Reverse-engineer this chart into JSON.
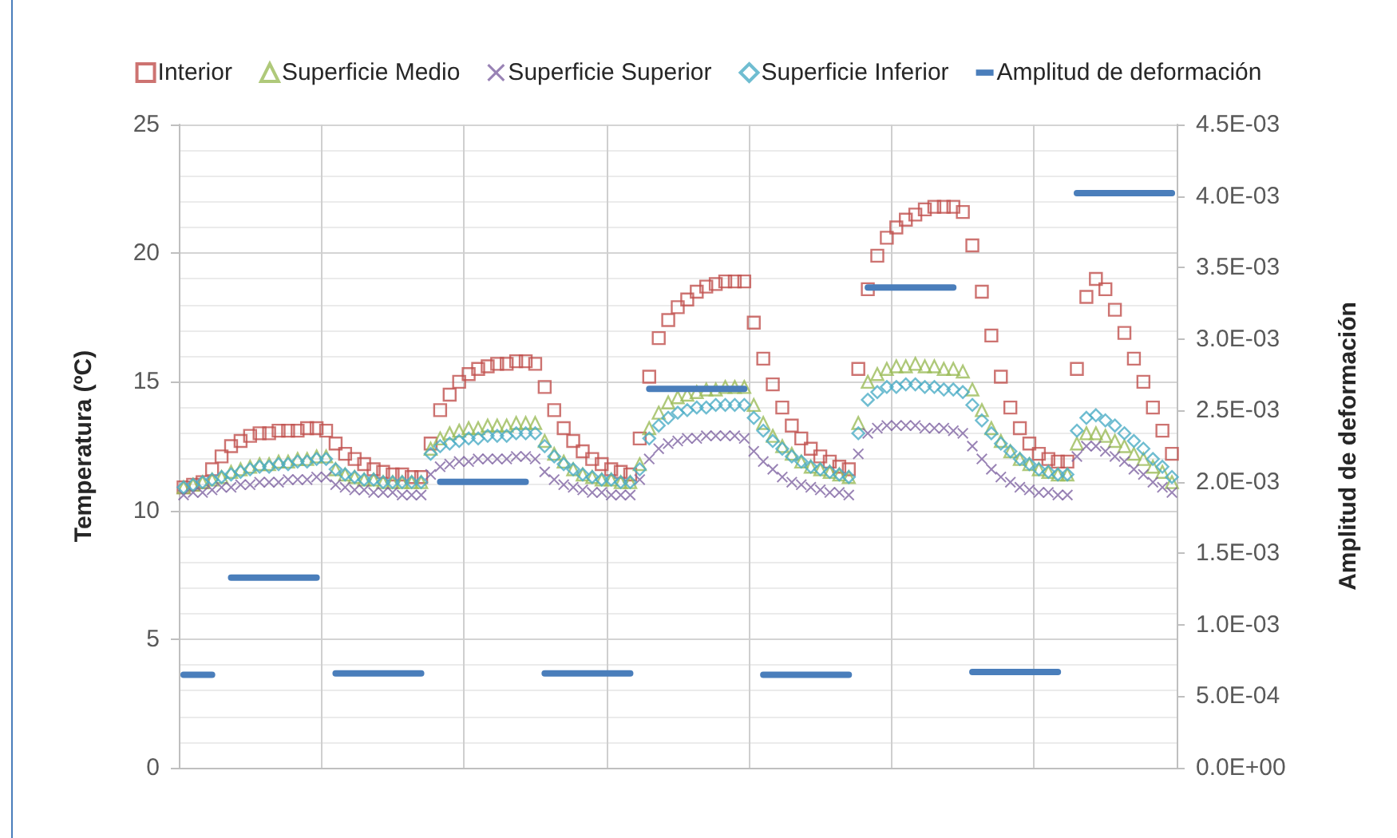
{
  "chart_data": {
    "type": "scatter",
    "categories": [
      null,
      null,
      null,
      null,
      null,
      null,
      null,
      null,
      null,
      null,
      null,
      null,
      null,
      null,
      null,
      null,
      null,
      null,
      null,
      null,
      null,
      null,
      null,
      null,
      null,
      null,
      null,
      null,
      null,
      null,
      null,
      null,
      null,
      null,
      null,
      null,
      null,
      null,
      null,
      null,
      null,
      null,
      null,
      null,
      null,
      null,
      null,
      null,
      null,
      null,
      null,
      null,
      null,
      null,
      null,
      null,
      null,
      null,
      null,
      null,
      null,
      null,
      null,
      null,
      null,
      null,
      null,
      null,
      null,
      null,
      null,
      null,
      null,
      null,
      null,
      null,
      null,
      null,
      null,
      null,
      null,
      null,
      null,
      null,
      null,
      null,
      null,
      null,
      null,
      null,
      null,
      null,
      null,
      null,
      null,
      null,
      null,
      null,
      null,
      null,
      null,
      null,
      null,
      null,
      null
    ],
    "ylabel": "Temperatura (ºC)",
    "y2label": "Amplitud de deformación",
    "ylim": [
      0,
      25
    ],
    "yticks": [
      0,
      5,
      10,
      15,
      20,
      25
    ],
    "y2lim": [
      0,
      0.0045
    ],
    "y2ticks": [
      {
        "value": 0,
        "label": "0.0E+00"
      },
      {
        "value": 0.0005,
        "label": "5.0E-04"
      },
      {
        "value": 0.001,
        "label": "1.0E-03"
      },
      {
        "value": 0.0015,
        "label": "1.5E-03"
      },
      {
        "value": 0.002,
        "label": "2.0E-03"
      },
      {
        "value": 0.0025,
        "label": "2.5E-03"
      },
      {
        "value": 0.003,
        "label": "3.0E-03"
      },
      {
        "value": 0.0035,
        "label": "3.5E-03"
      },
      {
        "value": 0.004,
        "label": "4.0E-03"
      },
      {
        "value": 0.0045,
        "label": "4.5E-03"
      }
    ],
    "grid": true,
    "legend": "top",
    "series": [
      {
        "name": "Interior",
        "color": "#c0504d",
        "marker": "square",
        "values": [
          10.9,
          11.0,
          11.1,
          11.6,
          12.1,
          12.5,
          12.7,
          12.9,
          13.0,
          13.0,
          13.1,
          13.1,
          13.1,
          13.2,
          13.2,
          13.1,
          12.6,
          12.2,
          12.0,
          11.8,
          11.6,
          11.5,
          11.4,
          11.4,
          11.3,
          11.3,
          12.6,
          13.9,
          14.5,
          15.0,
          15.3,
          15.5,
          15.6,
          15.7,
          15.7,
          15.8,
          15.8,
          15.7,
          14.8,
          13.9,
          13.2,
          12.7,
          12.3,
          12.0,
          11.8,
          11.6,
          11.5,
          11.4,
          12.8,
          15.2,
          16.7,
          17.4,
          17.9,
          18.2,
          18.5,
          18.7,
          18.8,
          18.9,
          18.9,
          18.9,
          17.3,
          15.9,
          14.9,
          14.0,
          13.3,
          12.8,
          12.4,
          12.1,
          11.9,
          11.7,
          11.6,
          15.5,
          18.6,
          19.9,
          20.6,
          21.0,
          21.3,
          21.5,
          21.7,
          21.8,
          21.8,
          21.8,
          21.6,
          20.3,
          18.5,
          16.8,
          15.2,
          14.0,
          13.2,
          12.6,
          12.2,
          12.0,
          11.9,
          11.9,
          15.5,
          18.3,
          19.0,
          18.6,
          17.8,
          16.9,
          15.9,
          15.0,
          14.0,
          13.1,
          12.2
        ]
      },
      {
        "name": "Superficie Medio",
        "color": "#9bbb59",
        "marker": "triangle",
        "values": [
          10.9,
          11.0,
          11.1,
          11.2,
          11.3,
          11.5,
          11.6,
          11.7,
          11.8,
          11.8,
          11.9,
          11.9,
          12.0,
          12.0,
          12.1,
          12.1,
          11.6,
          11.4,
          11.3,
          11.2,
          11.2,
          11.1,
          11.1,
          11.1,
          11.1,
          11.1,
          12.4,
          12.8,
          13.0,
          13.1,
          13.2,
          13.2,
          13.3,
          13.3,
          13.3,
          13.4,
          13.4,
          13.4,
          12.7,
          12.2,
          11.9,
          11.6,
          11.4,
          11.3,
          11.2,
          11.2,
          11.1,
          11.1,
          11.8,
          13.2,
          13.8,
          14.2,
          14.4,
          14.5,
          14.6,
          14.7,
          14.7,
          14.8,
          14.8,
          14.8,
          14.1,
          13.4,
          12.9,
          12.5,
          12.2,
          11.9,
          11.7,
          11.6,
          11.5,
          11.4,
          11.3,
          13.4,
          15.0,
          15.3,
          15.5,
          15.6,
          15.6,
          15.7,
          15.6,
          15.6,
          15.5,
          15.5,
          15.4,
          14.7,
          13.9,
          13.2,
          12.7,
          12.3,
          12.0,
          11.8,
          11.6,
          11.5,
          11.4,
          11.4,
          12.6,
          13.0,
          13.0,
          12.9,
          12.7,
          12.5,
          12.2,
          12.0,
          11.7,
          11.5,
          11.1
        ]
      },
      {
        "name": "Superficie Superior",
        "color": "#8064a2",
        "marker": "cross",
        "values": [
          10.6,
          10.7,
          10.7,
          10.8,
          10.9,
          10.9,
          11.0,
          11.0,
          11.1,
          11.1,
          11.1,
          11.2,
          11.2,
          11.2,
          11.3,
          11.3,
          11.0,
          10.9,
          10.8,
          10.8,
          10.7,
          10.7,
          10.7,
          10.6,
          10.6,
          10.6,
          11.4,
          11.7,
          11.8,
          11.9,
          11.9,
          12.0,
          12.0,
          12.0,
          12.0,
          12.1,
          12.1,
          12.0,
          11.5,
          11.2,
          11.0,
          10.9,
          10.8,
          10.7,
          10.7,
          10.6,
          10.6,
          10.6,
          11.2,
          12.0,
          12.4,
          12.6,
          12.7,
          12.8,
          12.8,
          12.9,
          12.9,
          12.9,
          12.9,
          12.8,
          12.3,
          11.9,
          11.6,
          11.3,
          11.1,
          11.0,
          10.9,
          10.8,
          10.7,
          10.7,
          10.6,
          12.2,
          13.0,
          13.2,
          13.3,
          13.3,
          13.3,
          13.3,
          13.2,
          13.2,
          13.2,
          13.1,
          13.0,
          12.5,
          12.0,
          11.6,
          11.3,
          11.1,
          10.9,
          10.8,
          10.7,
          10.7,
          10.6,
          10.6,
          12.1,
          12.5,
          12.5,
          12.3,
          12.1,
          11.9,
          11.6,
          11.4,
          11.1,
          10.9,
          10.7
        ]
      },
      {
        "name": "Superficie Inferior",
        "color": "#4bacc6",
        "marker": "diamond",
        "values": [
          10.9,
          11.0,
          11.1,
          11.2,
          11.3,
          11.4,
          11.5,
          11.6,
          11.7,
          11.7,
          11.8,
          11.8,
          11.9,
          11.9,
          12.0,
          12.0,
          11.6,
          11.4,
          11.3,
          11.2,
          11.2,
          11.1,
          11.1,
          11.1,
          11.1,
          11.1,
          12.2,
          12.5,
          12.6,
          12.7,
          12.8,
          12.8,
          12.9,
          12.9,
          12.9,
          13.0,
          13.0,
          13.0,
          12.5,
          12.1,
          11.8,
          11.6,
          11.4,
          11.3,
          11.2,
          11.2,
          11.1,
          11.1,
          11.6,
          12.8,
          13.3,
          13.6,
          13.8,
          13.9,
          14.0,
          14.0,
          14.1,
          14.1,
          14.1,
          14.1,
          13.6,
          13.1,
          12.7,
          12.4,
          12.1,
          11.9,
          11.7,
          11.6,
          11.5,
          11.4,
          11.3,
          13.0,
          14.3,
          14.6,
          14.8,
          14.8,
          14.9,
          14.9,
          14.8,
          14.8,
          14.7,
          14.7,
          14.6,
          14.1,
          13.5,
          13.0,
          12.6,
          12.3,
          12.0,
          11.8,
          11.6,
          11.5,
          11.4,
          11.4,
          13.1,
          13.6,
          13.7,
          13.5,
          13.3,
          13.0,
          12.7,
          12.4,
          12.0,
          11.7,
          11.3
        ]
      },
      {
        "name": "Amplitud de deformación",
        "type": "line",
        "axis": "y2",
        "color": "#4a7ebb",
        "marker": "none",
        "values": [
          0.00065,
          0.00065,
          0.00065,
          0.00065,
          null,
          0.00133,
          0.00133,
          0.00133,
          0.00133,
          0.00133,
          0.00133,
          0.00133,
          0.00133,
          0.00133,
          0.00133,
          null,
          0.00066,
          0.00066,
          0.00066,
          0.00066,
          0.00066,
          0.00066,
          0.00066,
          0.00066,
          0.00066,
          0.00066,
          null,
          0.002,
          0.002,
          0.002,
          0.002,
          0.002,
          0.002,
          0.002,
          0.002,
          0.002,
          0.002,
          null,
          0.00066,
          0.00066,
          0.00066,
          0.00066,
          0.00066,
          0.00066,
          0.00066,
          0.00066,
          0.00066,
          0.00066,
          null,
          0.00265,
          0.00265,
          0.00265,
          0.00265,
          0.00265,
          0.00265,
          0.00265,
          0.00265,
          0.00265,
          0.00265,
          0.00265,
          null,
          0.00065,
          0.00065,
          0.00065,
          0.00065,
          0.00065,
          0.00065,
          0.00065,
          0.00065,
          0.00065,
          0.00065,
          null,
          0.00336,
          0.00336,
          0.00336,
          0.00336,
          0.00336,
          0.00336,
          0.00336,
          0.00336,
          0.00336,
          0.00336,
          null,
          0.00067,
          0.00067,
          0.00067,
          0.00067,
          0.00067,
          0.00067,
          0.00067,
          0.00067,
          0.00067,
          0.00067,
          null,
          0.00402,
          0.00402,
          0.00402,
          0.00402,
          0.00402,
          0.00402,
          0.00402,
          0.00402,
          0.00402,
          0.00402,
          0.00402
        ]
      }
    ]
  }
}
